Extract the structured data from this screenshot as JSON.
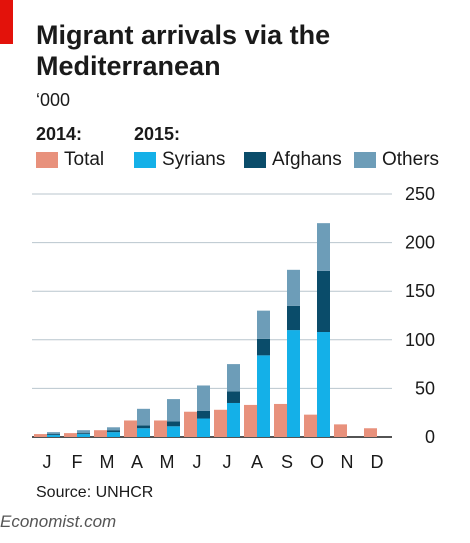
{
  "header": {
    "title_line1": "Migrant arrivals via the",
    "title_line2": "Mediterranean",
    "unit": "‘000"
  },
  "legend": {
    "year_2014": "2014:",
    "year_2015": "2015:",
    "items": [
      {
        "label": "Total",
        "color": "#e8917c"
      },
      {
        "label": "Syrians",
        "color": "#14b0e8"
      },
      {
        "label": "Afghans",
        "color": "#0a4c6a"
      },
      {
        "label": "Others",
        "color": "#6d9db8"
      }
    ]
  },
  "source": "Source: UNHCR",
  "brand": "Economist.com",
  "chart_data": {
    "type": "bar",
    "categories": [
      "J",
      "F",
      "M",
      "A",
      "M",
      "J",
      "J",
      "A",
      "S",
      "O",
      "N",
      "D"
    ],
    "ylim": [
      0,
      250
    ],
    "yticks": [
      0,
      50,
      100,
      150,
      200,
      250
    ],
    "series": [
      {
        "name": "Total",
        "group": "2014",
        "values": [
          3,
          4,
          7,
          17,
          17,
          26,
          28,
          33,
          34,
          23,
          13,
          9
        ]
      },
      {
        "name": "Syrians",
        "group": "2015",
        "values": [
          2,
          3,
          5,
          9,
          11,
          19,
          35,
          84,
          110,
          108,
          null,
          null
        ]
      },
      {
        "name": "Afghans",
        "group": "2015",
        "values": [
          1,
          1,
          2,
          3,
          5,
          8,
          12,
          17,
          25,
          63,
          null,
          null
        ]
      },
      {
        "name": "Others",
        "group": "2015",
        "values": [
          2,
          3,
          3,
          17,
          23,
          26,
          28,
          29,
          37,
          49,
          null,
          null
        ]
      }
    ]
  }
}
